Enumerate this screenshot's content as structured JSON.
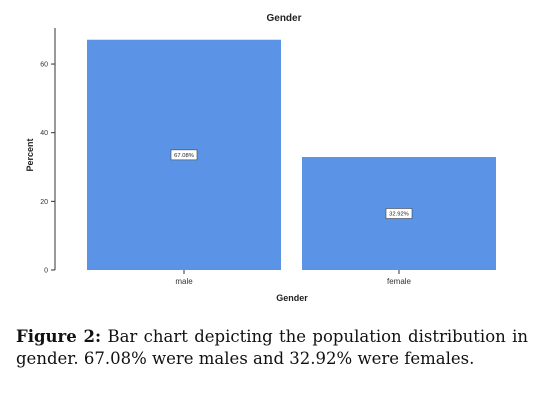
{
  "chart_data": {
    "type": "bar",
    "title": "Gender",
    "xlabel": "Gender",
    "ylabel": "Percent",
    "categories": [
      "male",
      "female"
    ],
    "values": [
      67.08,
      32.92
    ],
    "data_labels": [
      "67.08%",
      "32.92%"
    ],
    "yticks": [
      0,
      20,
      40,
      60
    ],
    "ylim": [
      0,
      70.5
    ],
    "bar_color": "#5b93e6",
    "grid": false,
    "legend": "none"
  },
  "caption": {
    "label": "Figure 2:",
    "text": "Bar chart depicting the population distribution in gender. 67.08% were males and 32.92% were females."
  }
}
